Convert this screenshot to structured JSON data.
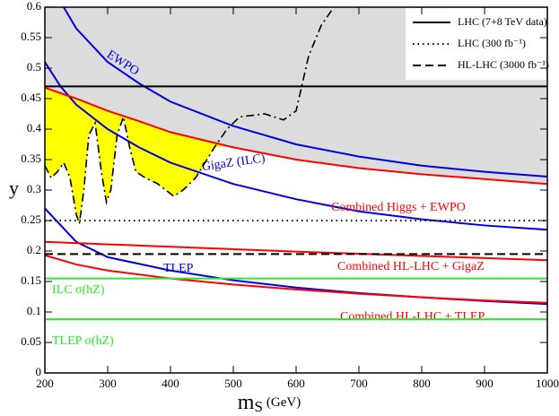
{
  "chart_data": {
    "type": "line",
    "x_label": {
      "symbol": "m",
      "subscript": "S",
      "unit": "(GeV)"
    },
    "y_label": "y",
    "xlim": [
      200,
      1000
    ],
    "ylim": [
      0,
      0.6
    ],
    "xticks": [
      200,
      300,
      400,
      500,
      600,
      700,
      800,
      900,
      1000
    ],
    "yticks": [
      0,
      0.05,
      0.1,
      0.15,
      0.2,
      0.25,
      0.3,
      0.35,
      0.4,
      0.45,
      0.5,
      0.55,
      0.6
    ],
    "shading": {
      "excluded_color": "#dcdcdc",
      "allowed_color": "#ffff00"
    },
    "series": [
      {
        "name": "EWPO",
        "color": "#0000dd",
        "style": "solid",
        "x": [
          230,
          250,
          300,
          350,
          400,
          500,
          600,
          700,
          800,
          900,
          1000
        ],
        "values": [
          0.6,
          0.565,
          0.51,
          0.475,
          0.445,
          0.405,
          0.375,
          0.355,
          0.34,
          0.33,
          0.322
        ]
      },
      {
        "name": "GigaZ (ILC)",
        "color": "#0000dd",
        "style": "solid",
        "x": [
          200,
          225,
          250,
          300,
          350,
          400,
          500,
          600,
          700,
          800,
          900,
          1000
        ],
        "values": [
          0.51,
          0.47,
          0.44,
          0.4,
          0.37,
          0.345,
          0.31,
          0.285,
          0.265,
          0.252,
          0.242,
          0.235
        ]
      },
      {
        "name": "TLEP",
        "color": "#0000dd",
        "style": "solid",
        "x": [
          200,
          250,
          300,
          400,
          500,
          600,
          700,
          800,
          900,
          1000
        ],
        "values": [
          0.27,
          0.215,
          0.19,
          0.168,
          0.152,
          0.14,
          0.131,
          0.124,
          0.118,
          0.113
        ]
      },
      {
        "name": "Combined Higgs + EWPO",
        "color": "#ff0000",
        "style": "solid",
        "x": [
          200,
          250,
          300,
          350,
          400,
          500,
          600,
          700,
          800,
          900,
          1000
        ],
        "values": [
          0.468,
          0.45,
          0.43,
          0.413,
          0.395,
          0.37,
          0.35,
          0.336,
          0.326,
          0.318,
          0.31
        ]
      },
      {
        "name": "Combined HL-LHC + GigaZ",
        "color": "#ff0000",
        "style": "solid",
        "x": [
          200,
          400,
          600,
          800,
          1000
        ],
        "values": [
          0.215,
          0.207,
          0.199,
          0.192,
          0.185
        ]
      },
      {
        "name": "Combined HL-LHC + TLEP",
        "color": "#ff0000",
        "style": "solid",
        "x": [
          200,
          250,
          300,
          400,
          500,
          600,
          700,
          800,
          900,
          1000
        ],
        "values": [
          0.193,
          0.178,
          0.168,
          0.155,
          0.145,
          0.137,
          0.13,
          0.124,
          0.119,
          0.115
        ]
      },
      {
        "color": "#000000",
        "style": "dashdot",
        "x": [
          200,
          210,
          220,
          230,
          240,
          250,
          255,
          262,
          270,
          280,
          290,
          298,
          305,
          315,
          325,
          335,
          345,
          360,
          380,
          405,
          420,
          440,
          470,
          490,
          510,
          550,
          580,
          600,
          620,
          640,
          660
        ],
        "values": [
          0.34,
          0.32,
          0.33,
          0.345,
          0.32,
          0.26,
          0.245,
          0.3,
          0.39,
          0.41,
          0.33,
          0.28,
          0.3,
          0.39,
          0.42,
          0.37,
          0.33,
          0.32,
          0.31,
          0.29,
          0.3,
          0.32,
          0.37,
          0.4,
          0.42,
          0.425,
          0.415,
          0.43,
          0.52,
          0.57,
          0.6
        ]
      }
    ],
    "hlines": [
      {
        "name": "LHC (7+8 TeV data)",
        "value": 0.47,
        "color": "#000000",
        "style": "solid",
        "legend": true
      },
      {
        "name": "LHC (300 fb⁻¹)",
        "value": 0.25,
        "color": "#000000",
        "style": "dotted",
        "legend": true
      },
      {
        "name": "HL-LHC (3000 fb⁻¹)",
        "value": 0.195,
        "color": "#000000",
        "style": "dashed",
        "legend": true
      },
      {
        "name": "ILC σ(hZ)",
        "value": 0.155,
        "color": "#22ee22",
        "style": "solid",
        "legend": false
      },
      {
        "name": "TLEP σ(hZ)",
        "value": 0.088,
        "color": "#22ee22",
        "style": "solid",
        "legend": false
      }
    ],
    "legend": "upper right"
  }
}
